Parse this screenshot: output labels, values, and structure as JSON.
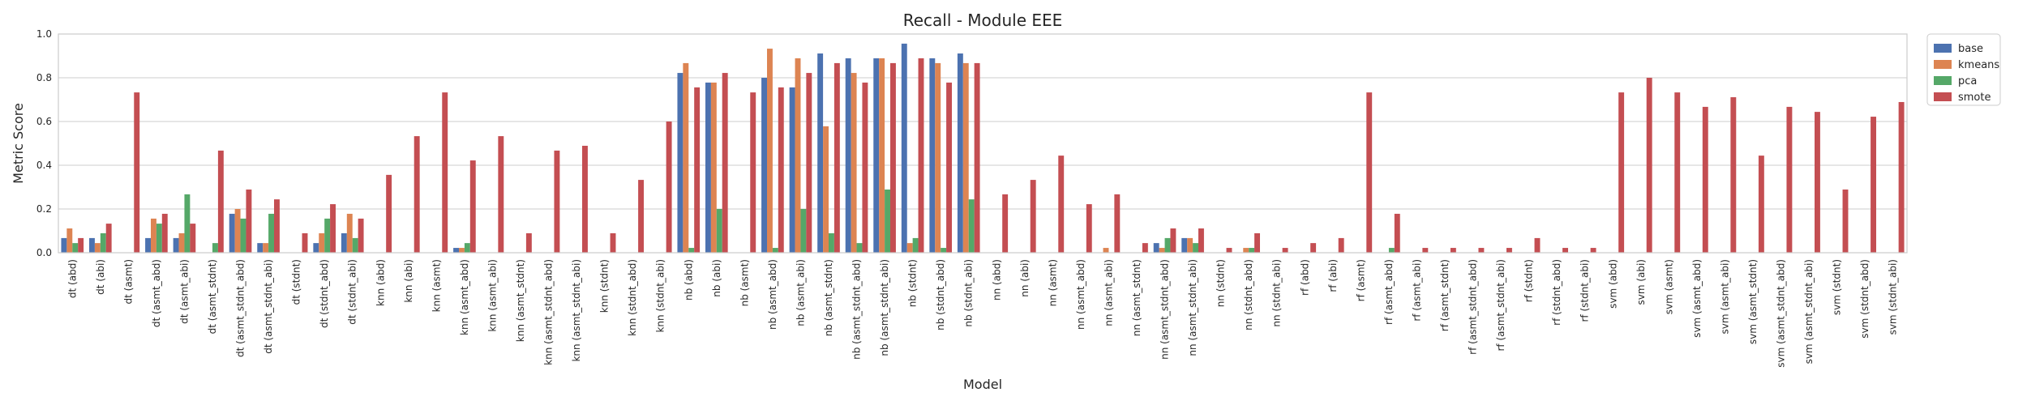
{
  "chart_data": {
    "type": "bar",
    "title": "Recall - Module EEE",
    "xlabel": "Model",
    "ylabel": "Metric Score",
    "ylim": [
      0,
      1.0
    ],
    "yticks": [
      "0.0",
      "0.2",
      "0.4",
      "0.6",
      "0.8",
      "1.0"
    ],
    "grid": "horizontal",
    "legend_position": "outside top-right",
    "categories": [
      "dt (abd)",
      "dt (abi)",
      "dt (asmt)",
      "dt (asmt_abd)",
      "dt (asmt_abi)",
      "dt (asmt_stdnt)",
      "dt (asmt_stdnt_abd)",
      "dt (asmt_stdnt_abi)",
      "dt (stdnt)",
      "dt (stdnt_abd)",
      "dt (stdnt_abi)",
      "knn (abd)",
      "knn (abi)",
      "knn (asmt)",
      "knn (asmt_abd)",
      "knn (asmt_abi)",
      "knn (asmt_stdnt)",
      "knn (asmt_stdnt_abd)",
      "knn (asmt_stdnt_abi)",
      "knn (stdnt)",
      "knn (stdnt_abd)",
      "knn (stdnt_abi)",
      "nb (abd)",
      "nb (abi)",
      "nb (asmt)",
      "nb (asmt_abd)",
      "nb (asmt_abi)",
      "nb (asmt_stdnt)",
      "nb (asmt_stdnt_abd)",
      "nb (asmt_stdnt_abi)",
      "nb (stdnt)",
      "nb (stdnt_abd)",
      "nb (stdnt_abi)",
      "nn (abd)",
      "nn (abi)",
      "nn (asmt)",
      "nn (asmt_abd)",
      "nn (asmt_abi)",
      "nn (asmt_stdnt)",
      "nn (asmt_stdnt_abd)",
      "nn (asmt_stdnt_abi)",
      "nn (stdnt)",
      "nn (stdnt_abd)",
      "nn (stdnt_abi)",
      "rf (abd)",
      "rf (abi)",
      "rf (asmt)",
      "rf (asmt_abd)",
      "rf (asmt_abi)",
      "rf (asmt_stdnt)",
      "rf (asmt_stdnt_abd)",
      "rf (asmt_stdnt_abi)",
      "rf (stdnt)",
      "rf (stdnt_abd)",
      "rf (stdnt_abi)",
      "svm (abd)",
      "svm (abi)",
      "svm (asmt)",
      "svm (asmt_abd)",
      "svm (asmt_abi)",
      "svm (asmt_stdnt)",
      "svm (asmt_stdnt_abd)",
      "svm (asmt_stdnt_abi)",
      "svm (stdnt)",
      "svm (stdnt_abd)",
      "svm (stdnt_abi)"
    ],
    "series": [
      {
        "name": "base",
        "color": "#4C72B0",
        "values": [
          0.067,
          0.067,
          null,
          0.067,
          0.067,
          null,
          0.178,
          0.044,
          null,
          0.044,
          0.089,
          null,
          null,
          null,
          0.022,
          null,
          null,
          null,
          null,
          null,
          null,
          null,
          0.822,
          0.778,
          null,
          0.8,
          0.756,
          0.911,
          0.889,
          0.889,
          0.956,
          0.889,
          0.911,
          null,
          null,
          null,
          null,
          null,
          null,
          0.044,
          0.067,
          null,
          null,
          null,
          null,
          null,
          null,
          null,
          null,
          null,
          null,
          null,
          null,
          null,
          null,
          null,
          null,
          null,
          null,
          null,
          null,
          null,
          null,
          null,
          null,
          null
        ]
      },
      {
        "name": "kmeans",
        "color": "#DD8452",
        "values": [
          0.111,
          0.044,
          null,
          0.156,
          0.089,
          null,
          0.2,
          0.044,
          null,
          0.089,
          0.178,
          null,
          null,
          null,
          0.022,
          null,
          null,
          null,
          null,
          null,
          null,
          null,
          0.867,
          0.778,
          null,
          0.933,
          0.889,
          0.578,
          0.822,
          0.889,
          0.044,
          0.867,
          0.867,
          null,
          null,
          null,
          null,
          0.022,
          null,
          0.022,
          0.067,
          null,
          0.022,
          null,
          null,
          null,
          null,
          null,
          null,
          null,
          null,
          null,
          null,
          null,
          null,
          null,
          null,
          null,
          null,
          null,
          null,
          null,
          null,
          null,
          null,
          null
        ]
      },
      {
        "name": "pca",
        "color": "#55A868",
        "values": [
          0.044,
          0.089,
          null,
          0.133,
          0.267,
          0.044,
          0.156,
          0.178,
          null,
          0.156,
          0.067,
          null,
          null,
          null,
          0.044,
          null,
          null,
          null,
          null,
          null,
          null,
          null,
          0.022,
          0.2,
          null,
          0.022,
          0.2,
          0.089,
          0.044,
          0.289,
          0.067,
          0.022,
          0.244,
          null,
          null,
          null,
          null,
          null,
          null,
          0.067,
          0.044,
          null,
          0.022,
          null,
          null,
          null,
          null,
          0.022,
          null,
          null,
          null,
          null,
          null,
          null,
          null,
          null,
          null,
          null,
          null,
          null,
          null,
          null,
          null,
          null,
          null,
          null
        ]
      },
      {
        "name": "smote",
        "color": "#C44E52",
        "values": [
          0.067,
          0.133,
          0.733,
          0.178,
          0.133,
          0.467,
          0.289,
          0.244,
          0.089,
          0.222,
          0.156,
          0.356,
          0.533,
          0.733,
          0.422,
          0.533,
          0.089,
          0.467,
          0.489,
          0.089,
          0.333,
          0.6,
          0.756,
          0.822,
          0.733,
          0.756,
          0.822,
          0.867,
          0.778,
          0.867,
          0.889,
          0.778,
          0.867,
          0.267,
          0.333,
          0.444,
          0.222,
          0.267,
          0.044,
          0.111,
          0.111,
          0.022,
          0.089,
          0.022,
          0.044,
          0.067,
          0.733,
          0.178,
          0.022,
          0.022,
          0.022,
          0.022,
          0.067,
          0.022,
          0.022,
          0.733,
          0.8,
          0.733,
          0.667,
          0.711,
          0.444,
          0.667,
          0.644,
          0.289,
          0.622,
          0.689
        ]
      }
    ]
  }
}
